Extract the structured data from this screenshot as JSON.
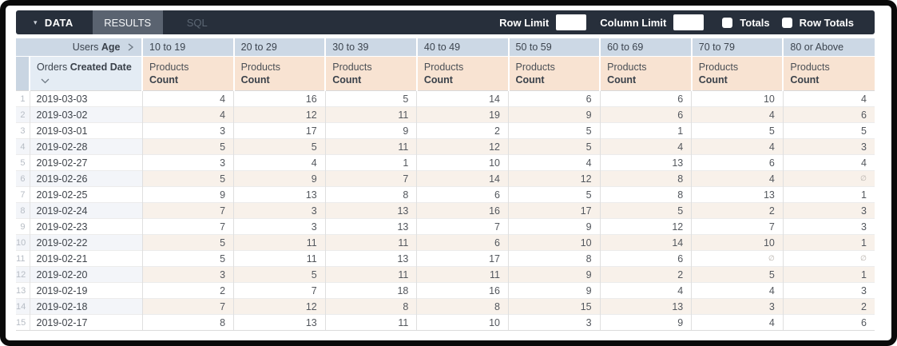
{
  "topbar": {
    "data_tab": "DATA",
    "results_tab": "RESULTS",
    "sql_tab": "SQL",
    "row_limit_label": "Row Limit",
    "row_limit_value": "",
    "column_limit_label": "Column Limit",
    "column_limit_value": "",
    "totals_label": "Totals",
    "row_totals_label": "Row Totals"
  },
  "table": {
    "pivot_header": {
      "prefix": "Users",
      "bold": "Age"
    },
    "row_header": {
      "prefix": "Orders",
      "bold": "Created Date"
    },
    "measure": {
      "prefix": "Products",
      "bold": "Count"
    },
    "age_buckets": [
      "10 to 19",
      "20 to 29",
      "30 to 39",
      "40 to 49",
      "50 to 59",
      "60 to 69",
      "70 to 79",
      "80 or Above"
    ],
    "null_symbol": "∅",
    "rows": [
      {
        "n": "1",
        "date": "2019-03-03",
        "values": [
          "4",
          "16",
          "5",
          "14",
          "6",
          "6",
          "10",
          "4"
        ]
      },
      {
        "n": "2",
        "date": "2019-03-02",
        "values": [
          "4",
          "12",
          "11",
          "19",
          "9",
          "6",
          "4",
          "6"
        ]
      },
      {
        "n": "3",
        "date": "2019-03-01",
        "values": [
          "3",
          "17",
          "9",
          "2",
          "5",
          "1",
          "5",
          "5"
        ]
      },
      {
        "n": "4",
        "date": "2019-02-28",
        "values": [
          "5",
          "5",
          "11",
          "12",
          "5",
          "4",
          "4",
          "3"
        ]
      },
      {
        "n": "5",
        "date": "2019-02-27",
        "values": [
          "3",
          "4",
          "1",
          "10",
          "4",
          "13",
          "6",
          "4"
        ]
      },
      {
        "n": "6",
        "date": "2019-02-26",
        "values": [
          "5",
          "9",
          "7",
          "14",
          "12",
          "8",
          "4",
          "∅"
        ]
      },
      {
        "n": "7",
        "date": "2019-02-25",
        "values": [
          "9",
          "13",
          "8",
          "6",
          "5",
          "8",
          "13",
          "1"
        ]
      },
      {
        "n": "8",
        "date": "2019-02-24",
        "values": [
          "7",
          "3",
          "13",
          "16",
          "17",
          "5",
          "2",
          "3"
        ]
      },
      {
        "n": "9",
        "date": "2019-02-23",
        "values": [
          "7",
          "3",
          "13",
          "7",
          "9",
          "12",
          "7",
          "3"
        ]
      },
      {
        "n": "10",
        "date": "2019-02-22",
        "values": [
          "5",
          "11",
          "11",
          "6",
          "10",
          "14",
          "10",
          "1"
        ]
      },
      {
        "n": "11",
        "date": "2019-02-21",
        "values": [
          "5",
          "11",
          "13",
          "17",
          "8",
          "6",
          "∅",
          "∅"
        ]
      },
      {
        "n": "12",
        "date": "2019-02-20",
        "values": [
          "3",
          "5",
          "11",
          "11",
          "9",
          "2",
          "5",
          "1"
        ]
      },
      {
        "n": "13",
        "date": "2019-02-19",
        "values": [
          "2",
          "7",
          "18",
          "16",
          "9",
          "4",
          "4",
          "3"
        ]
      },
      {
        "n": "14",
        "date": "2019-02-18",
        "values": [
          "7",
          "12",
          "8",
          "8",
          "15",
          "13",
          "3",
          "2"
        ]
      },
      {
        "n": "15",
        "date": "2019-02-17",
        "values": [
          "8",
          "13",
          "11",
          "10",
          "3",
          "9",
          "4",
          "6"
        ]
      }
    ]
  },
  "colors": {
    "topbar_bg": "#272f3b",
    "results_tab_bg": "#5a6370",
    "pivot_header_bg": "#ccd8e5",
    "row_header_bg": "#e4ecf4",
    "measure_header_bg": "#f8e3d2",
    "even_row_tint": "#f8f1ea",
    "even_row_dim_tint": "#f3f5f9"
  }
}
